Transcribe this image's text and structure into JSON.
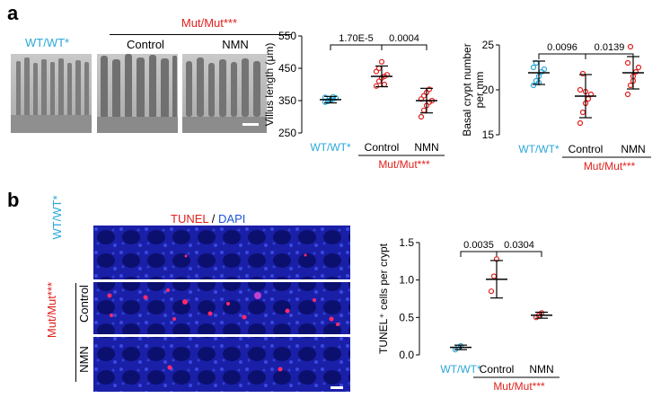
{
  "panel_a": {
    "letter": "a",
    "wt_label": "WT/WT*",
    "mut_label": "Mut/Mut***",
    "control_label": "Control",
    "nmn_label": "NMN"
  },
  "panel_b": {
    "letter": "b",
    "tunel_label": "TUNEL",
    "slash": "/",
    "dapi_label": "DAPI",
    "wt_label": "WT/WT*",
    "mut_label": "Mut/Mut***",
    "control_label": "Control",
    "nmn_label": "NMN"
  },
  "colors": {
    "wt": "#2aa7d8",
    "mut": "#e0201c",
    "dapi": "#1c55d6",
    "tunel": "#ff2a6a"
  },
  "chart_data": [
    {
      "type": "scatter",
      "ylabel": "Villus length (μm)",
      "ylim": [
        250,
        550
      ],
      "yticks": [
        250,
        350,
        450,
        550
      ],
      "categories": [
        "WT/WT*",
        "Control",
        "NMN"
      ],
      "group_label": "Mut/Mut***",
      "means": [
        353,
        425,
        350
      ],
      "sd": [
        10,
        32,
        38
      ],
      "points": [
        [
          345,
          350,
          352,
          355,
          358,
          360,
          348,
          350,
          362
        ],
        [
          395,
          410,
          420,
          425,
          430,
          440,
          450,
          470,
          400
        ],
        [
          300,
          320,
          335,
          345,
          350,
          355,
          365,
          375,
          385
        ]
      ],
      "pvalues": [
        {
          "from": 0,
          "to": 1,
          "text": "1.70E-5"
        },
        {
          "from": 1,
          "to": 2,
          "text": "0.0004"
        }
      ]
    },
    {
      "type": "scatter",
      "ylabel": "Basal crypt number per mm",
      "ylim": [
        15,
        25
      ],
      "yticks": [
        15,
        20,
        25
      ],
      "categories": [
        "WT/WT*",
        "Control",
        "NMN"
      ],
      "group_label": "Mut/Mut***",
      "means": [
        21.9,
        19.3,
        21.9
      ],
      "sd": [
        1.3,
        2.4,
        1.8
      ],
      "points": [
        [
          20.5,
          21.0,
          21.5,
          22.0,
          22.3,
          22.5,
          23.0,
          20.8
        ],
        [
          16.3,
          17.5,
          18.5,
          19.0,
          19.5,
          20.0,
          21.8,
          19.8
        ],
        [
          19.5,
          20.5,
          21.5,
          22.0,
          22.5,
          23.0,
          24.8,
          21.0
        ]
      ],
      "pvalues": [
        {
          "from": 0,
          "to": 1,
          "text": "0.0096"
        },
        {
          "from": 1,
          "to": 2,
          "text": "0.0139"
        }
      ]
    },
    {
      "type": "scatter",
      "ylabel": "TUNEL⁺ cells per crypt",
      "ylim": [
        0,
        1.5
      ],
      "yticks": [
        0.0,
        0.5,
        1.0,
        1.5
      ],
      "categories": [
        "WT/WT*",
        "Control",
        "NMN"
      ],
      "group_label": "Mut/Mut***",
      "means": [
        0.1,
        1.01,
        0.53
      ],
      "sd": [
        0.03,
        0.25,
        0.04
      ],
      "points": [
        [
          0.07,
          0.1,
          0.12
        ],
        [
          0.85,
          1.05,
          1.28
        ],
        [
          0.5,
          0.53,
          0.56
        ]
      ],
      "pvalues": [
        {
          "from": 0,
          "to": 1,
          "text": "0.0035"
        },
        {
          "from": 1,
          "to": 2,
          "text": "0.0304"
        }
      ]
    }
  ]
}
